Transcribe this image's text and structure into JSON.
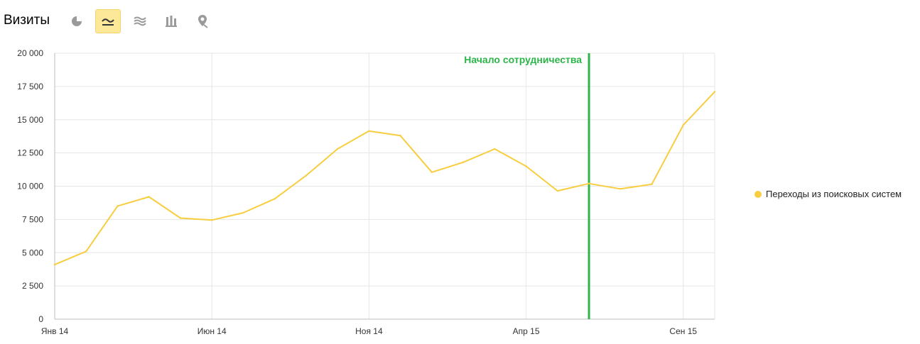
{
  "header": {
    "title": "Визиты",
    "tools": [
      {
        "icon": "pie-chart-icon",
        "active": false
      },
      {
        "icon": "line-chart-icon",
        "active": true
      },
      {
        "icon": "area-chart-icon",
        "active": false
      },
      {
        "icon": "bar-chart-icon",
        "active": false
      },
      {
        "icon": "map-pin-icon",
        "active": false
      }
    ]
  },
  "colors": {
    "series": "#f8cd3f",
    "annotation": "#2db54a",
    "grid": "#e6e6e6",
    "axis_text": "#333333",
    "active_tool_bg": "#fde89a"
  },
  "chart_data": {
    "type": "line",
    "title": "",
    "xlabel": "",
    "ylabel": "",
    "ylim": [
      0,
      20000
    ],
    "y_ticks": [
      0,
      2500,
      5000,
      7500,
      10000,
      12500,
      15000,
      17500,
      20000
    ],
    "y_tick_labels": [
      "0",
      "2 500",
      "5 000",
      "7 500",
      "10 000",
      "12 500",
      "15 000",
      "17 500",
      "20 000"
    ],
    "x": [
      "2014-01",
      "2014-02",
      "2014-03",
      "2014-04",
      "2014-05",
      "2014-06",
      "2014-07",
      "2014-08",
      "2014-09",
      "2014-10",
      "2014-11",
      "2014-12",
      "2015-01",
      "2015-02",
      "2015-03",
      "2015-04",
      "2015-05",
      "2015-06",
      "2015-07",
      "2015-08",
      "2015-09",
      "2015-10"
    ],
    "x_tick_labels": [
      {
        "x": "2014-01",
        "label": "Янв 14"
      },
      {
        "x": "2014-06",
        "label": "Июн 14"
      },
      {
        "x": "2014-11",
        "label": "Ноя 14"
      },
      {
        "x": "2015-04",
        "label": "Апр 15"
      },
      {
        "x": "2015-09",
        "label": "Сен 15"
      }
    ],
    "series": [
      {
        "name": "Переходы из поисковых систем",
        "values": [
          4100,
          5100,
          8500,
          9200,
          7600,
          7450,
          8000,
          9050,
          10800,
          12800,
          14150,
          13800,
          11050,
          11800,
          12800,
          11500,
          9650,
          10200,
          9800,
          10150,
          14600,
          17100
        ]
      }
    ],
    "annotations": [
      {
        "x": "2015-06",
        "label": "Начало сотрудничества"
      }
    ],
    "grid": true,
    "legend_position": "right"
  }
}
